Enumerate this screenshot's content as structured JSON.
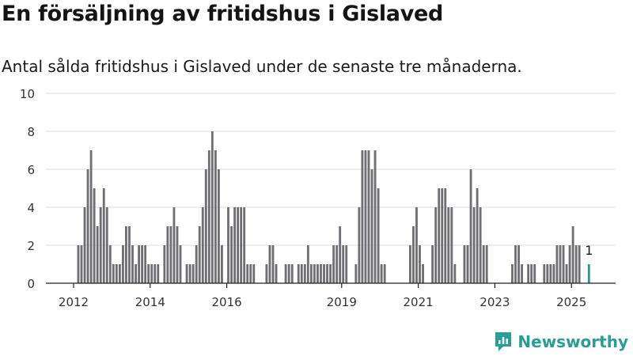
{
  "title": "En försäljning av fritidshus i Gislaved",
  "subtitle": "Antal sålda fritidshus i Gislaved under de senaste tre månaderna.",
  "brand": "Newsworthy",
  "colors": {
    "bar": "#6f6e73",
    "highlight": "#1f9c98",
    "grid": "#dedede",
    "brand": "#2a9d95"
  },
  "chart_data": {
    "type": "bar",
    "title": "",
    "xlabel": "",
    "ylabel": "",
    "ylim": [
      0,
      10
    ],
    "yticks": [
      0,
      2,
      4,
      6,
      8,
      10
    ],
    "grid": true,
    "legend": "none",
    "x_tick_labels": [
      "2012",
      "2014",
      "2016",
      "2019",
      "2021",
      "2023",
      "2025"
    ],
    "x_start": "2012-01",
    "x_end": "2025-04",
    "values": [
      0,
      2,
      2,
      4,
      6,
      7,
      5,
      3,
      4,
      5,
      4,
      2,
      1,
      1,
      1,
      2,
      3,
      3,
      2,
      1,
      2,
      2,
      2,
      1,
      1,
      1,
      1,
      0,
      2,
      3,
      3,
      4,
      3,
      2,
      0,
      1,
      1,
      1,
      2,
      3,
      4,
      6,
      7,
      8,
      7,
      6,
      2,
      0,
      4,
      3,
      4,
      4,
      4,
      4,
      1,
      1,
      1,
      0,
      0,
      0,
      1,
      2,
      2,
      1,
      0,
      0,
      1,
      1,
      1,
      0,
      1,
      1,
      1,
      2,
      1,
      1,
      1,
      1,
      1,
      1,
      1,
      2,
      2,
      3,
      2,
      2,
      0,
      0,
      1,
      4,
      7,
      7,
      7,
      6,
      7,
      5,
      1,
      1,
      0,
      0,
      0,
      0,
      0,
      0,
      0,
      2,
      3,
      4,
      2,
      1,
      0,
      0,
      2,
      4,
      5,
      5,
      5,
      4,
      4,
      1,
      0,
      0,
      2,
      2,
      6,
      4,
      5,
      4,
      2,
      2,
      0,
      0,
      0,
      0,
      0,
      0,
      0,
      1,
      2,
      2,
      1,
      0,
      1,
      1,
      1,
      0,
      0,
      1,
      1,
      1,
      1,
      2,
      2,
      2,
      1,
      2,
      3,
      2,
      2,
      0,
      0,
      1
    ],
    "last_value_label": "1"
  }
}
